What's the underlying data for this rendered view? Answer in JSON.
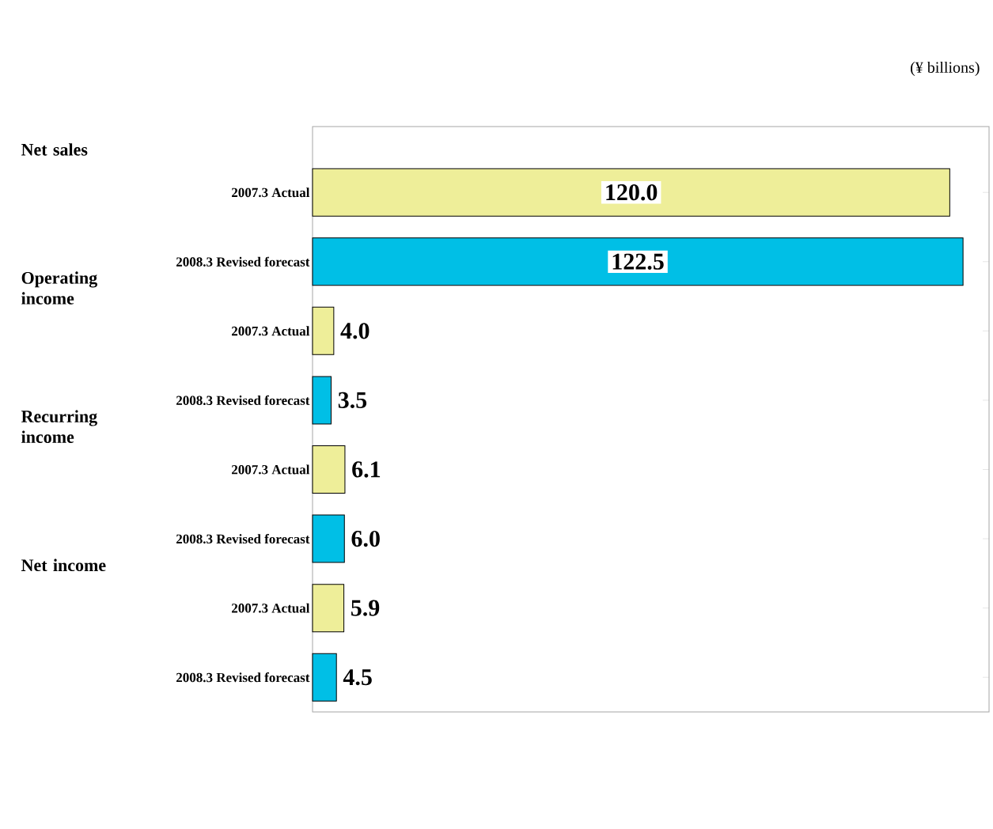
{
  "chart_data": {
    "type": "bar",
    "orientation": "horizontal",
    "categories": [
      "2007.3 Actual",
      "2008.3 Revised forecast",
      "2007.3 Actual",
      "2008.3 Revised forecast",
      "2007.3 Actual",
      "2008.3 Revised forecast",
      "2007.3 Actual",
      "2008.3 Revised forecast"
    ],
    "values": [
      120.0,
      122.5,
      4.0,
      3.5,
      6.1,
      6.0,
      5.9,
      4.5
    ],
    "value_labels": [
      "120.0",
      "122.5",
      "4.0",
      "3.5",
      "6.1",
      "6.0",
      "5.9",
      "4.5"
    ],
    "colors": [
      "#eeee99",
      "#00bfe6",
      "#eeee99",
      "#00bfe6",
      "#eeee99",
      "#00bfe6",
      "#eeee99",
      "#00bfe6"
    ],
    "annotations": [
      "Net sales",
      "Operating income",
      "Recurring income",
      "Net income",
      "(¥ billions)"
    ]
  }
}
